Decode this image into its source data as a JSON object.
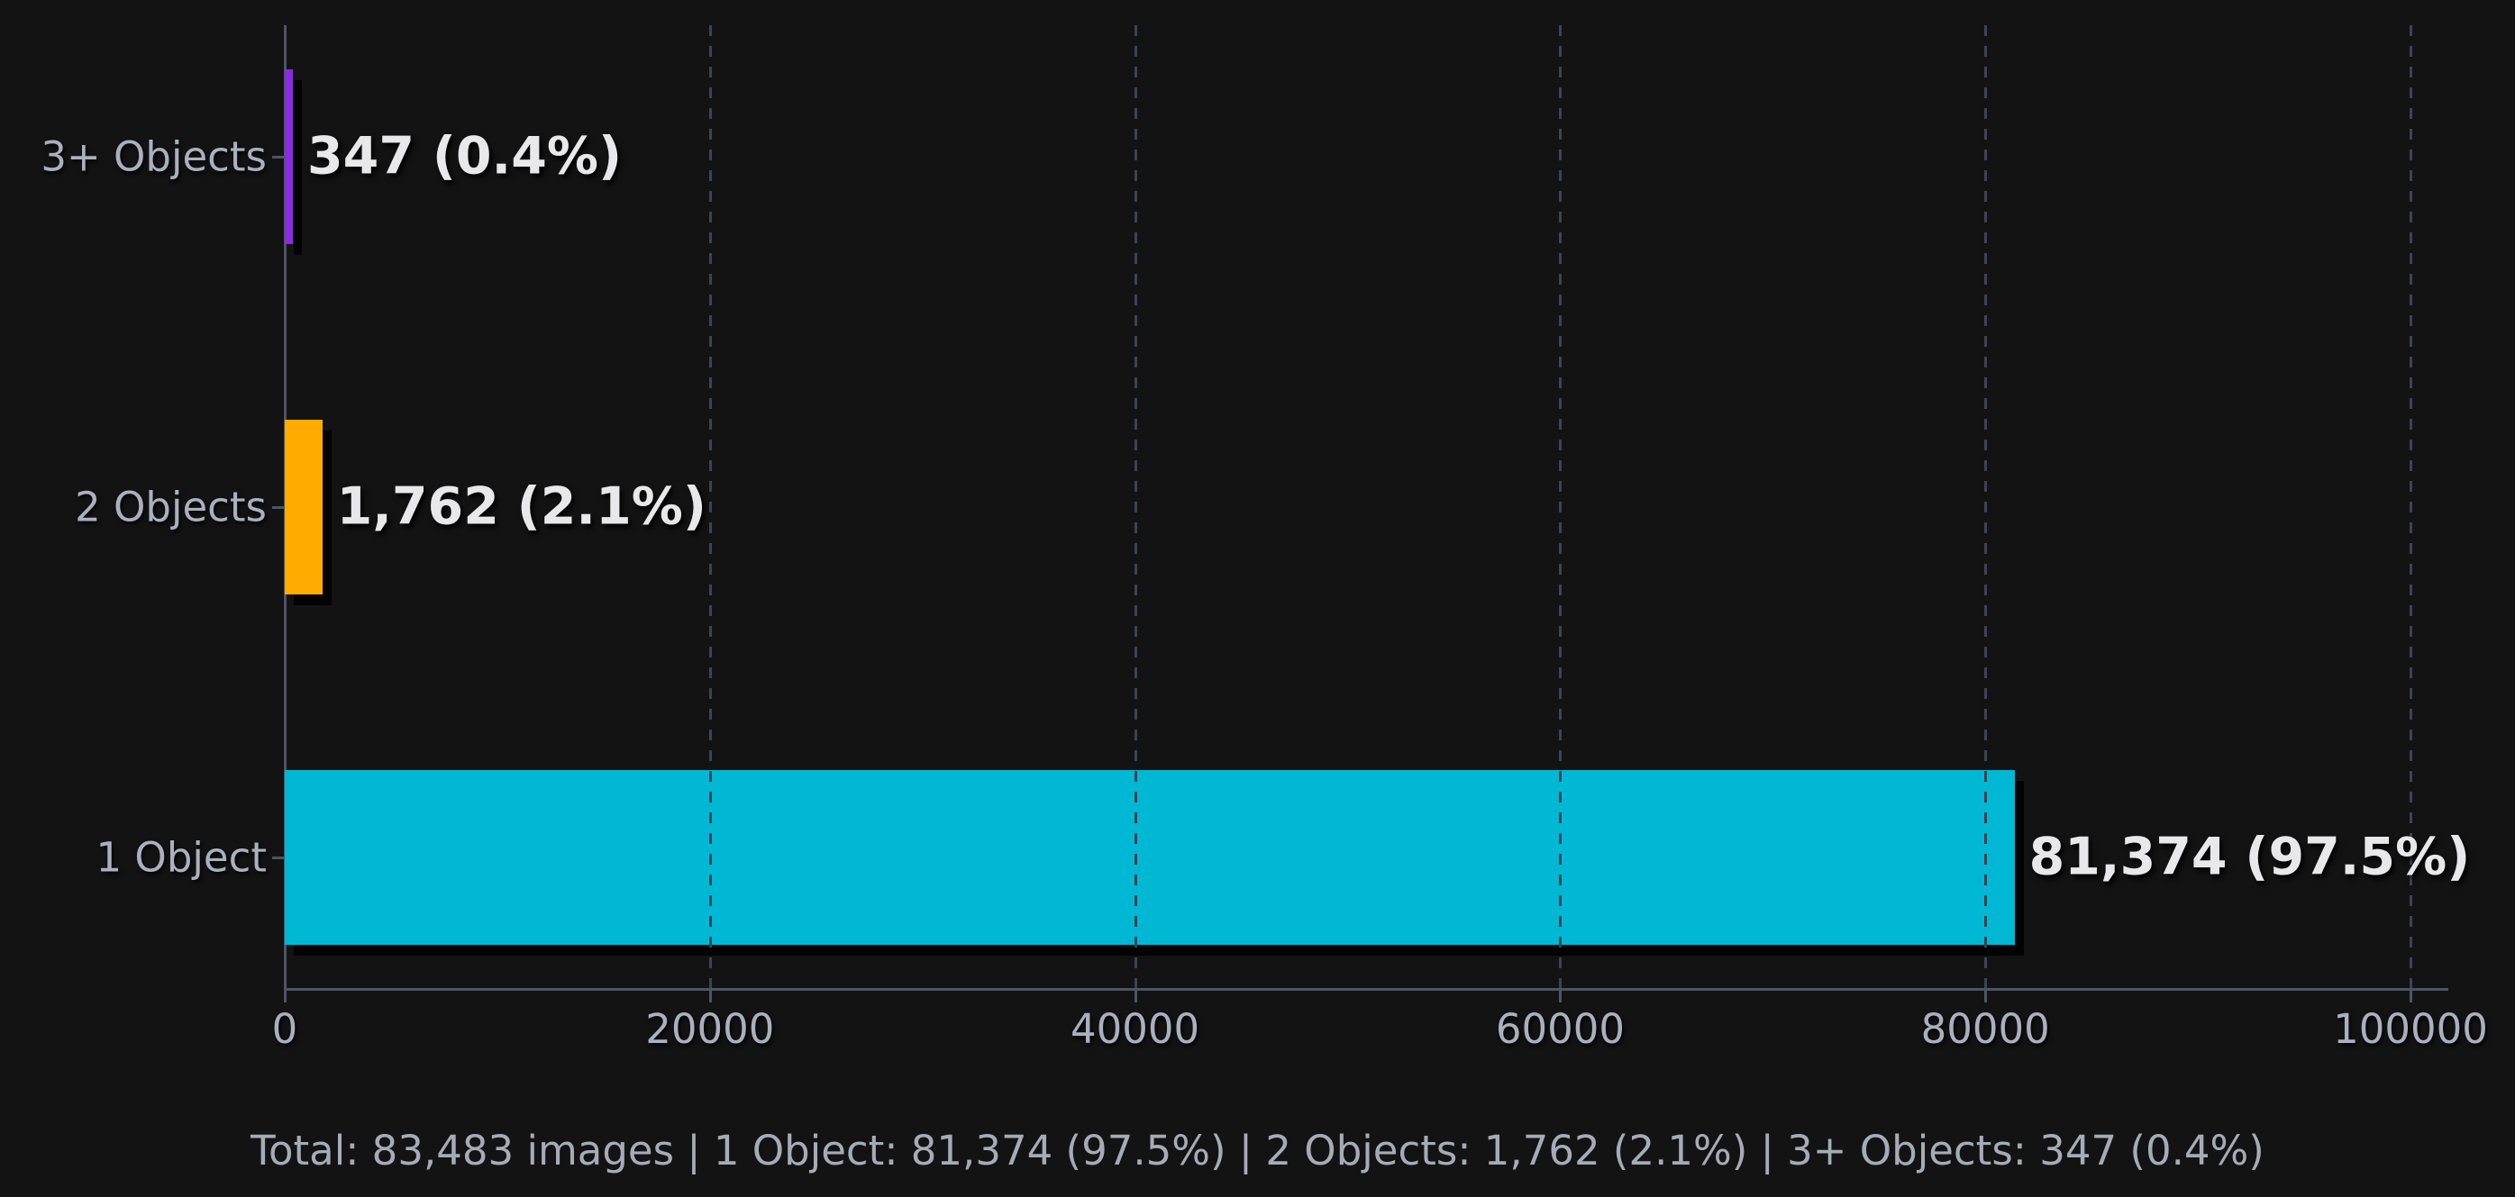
{
  "chart_data": {
    "type": "bar",
    "orientation": "horizontal",
    "title": "",
    "xlabel": "",
    "ylabel": "",
    "categories": [
      "3+ Objects",
      "2 Objects",
      "1 Object"
    ],
    "values": [
      347,
      1762,
      81374
    ],
    "percentages": [
      0.4,
      2.1,
      97.5
    ],
    "value_labels": [
      "347  (0.4%)",
      "1,762  (2.1%)",
      "81,374  (97.5%)"
    ],
    "bar_colors": [
      "#8A2BE2",
      "#FFAB00",
      "#00B8D4"
    ],
    "x_ticks": [
      0,
      20000,
      40000,
      60000,
      80000,
      100000
    ],
    "x_tick_labels": [
      "0",
      "20000",
      "40000",
      "60000",
      "80000",
      "100000"
    ],
    "xlim": [
      0,
      101800
    ],
    "grid": "vertical-dashed",
    "legend": "none",
    "total_images": "83,483",
    "footer_text": "Total: 83,483 images  |  1 Object: 81,374 (97.5%)  |  2 Objects: 1,762 (2.1%)  |  3+ Objects: 347 (0.4%)"
  },
  "colors": {
    "background": "#131313",
    "spine": "#4c5565",
    "gridline": "#3a4555",
    "axis_text": "#a9b1c0",
    "value_text": "#e8e8ea",
    "footer_text": "#a5acb8",
    "bar_shadow": "rgba(0,0,0,0.8)"
  }
}
